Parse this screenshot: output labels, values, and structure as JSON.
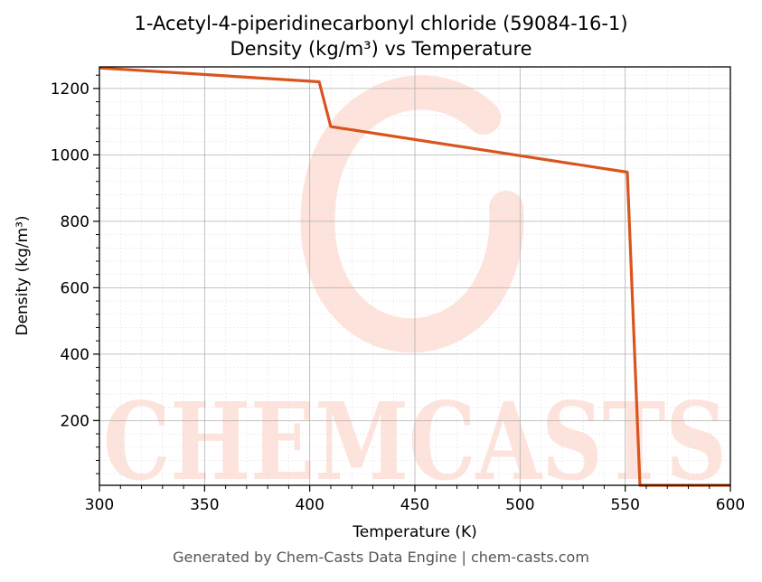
{
  "title_line1": "1-Acetyl-4-piperidinecarbonyl chloride (59084-16-1)",
  "title_line2": "Density (kg/m³) vs Temperature",
  "footer": "Generated by Chem-Casts Data Engine | chem-casts.com",
  "watermark": "CHEMCASTS",
  "colors": {
    "line": "#d9541e",
    "watermark": "#fde3dc",
    "grid_major": "#b0b0b0",
    "grid_minor": "#e4e4e4"
  },
  "chart_data": {
    "type": "line",
    "title": "1-Acetyl-4-piperidinecarbonyl chloride (59084-16-1)\nDensity (kg/m³) vs Temperature",
    "xlabel": "Temperature (K)",
    "ylabel": "Density (kg/m³)",
    "xlim": [
      300,
      600
    ],
    "ylim": [
      5,
      1265
    ],
    "xticks": [
      300,
      350,
      400,
      450,
      500,
      550,
      600
    ],
    "yticks": [
      200,
      400,
      600,
      800,
      1000,
      1200
    ],
    "grid": true,
    "series": [
      {
        "x": [
          300,
          404.5,
          410,
          551,
          557,
          600
        ],
        "y": [
          1262,
          1220,
          1085,
          948,
          5,
          5
        ]
      }
    ]
  }
}
